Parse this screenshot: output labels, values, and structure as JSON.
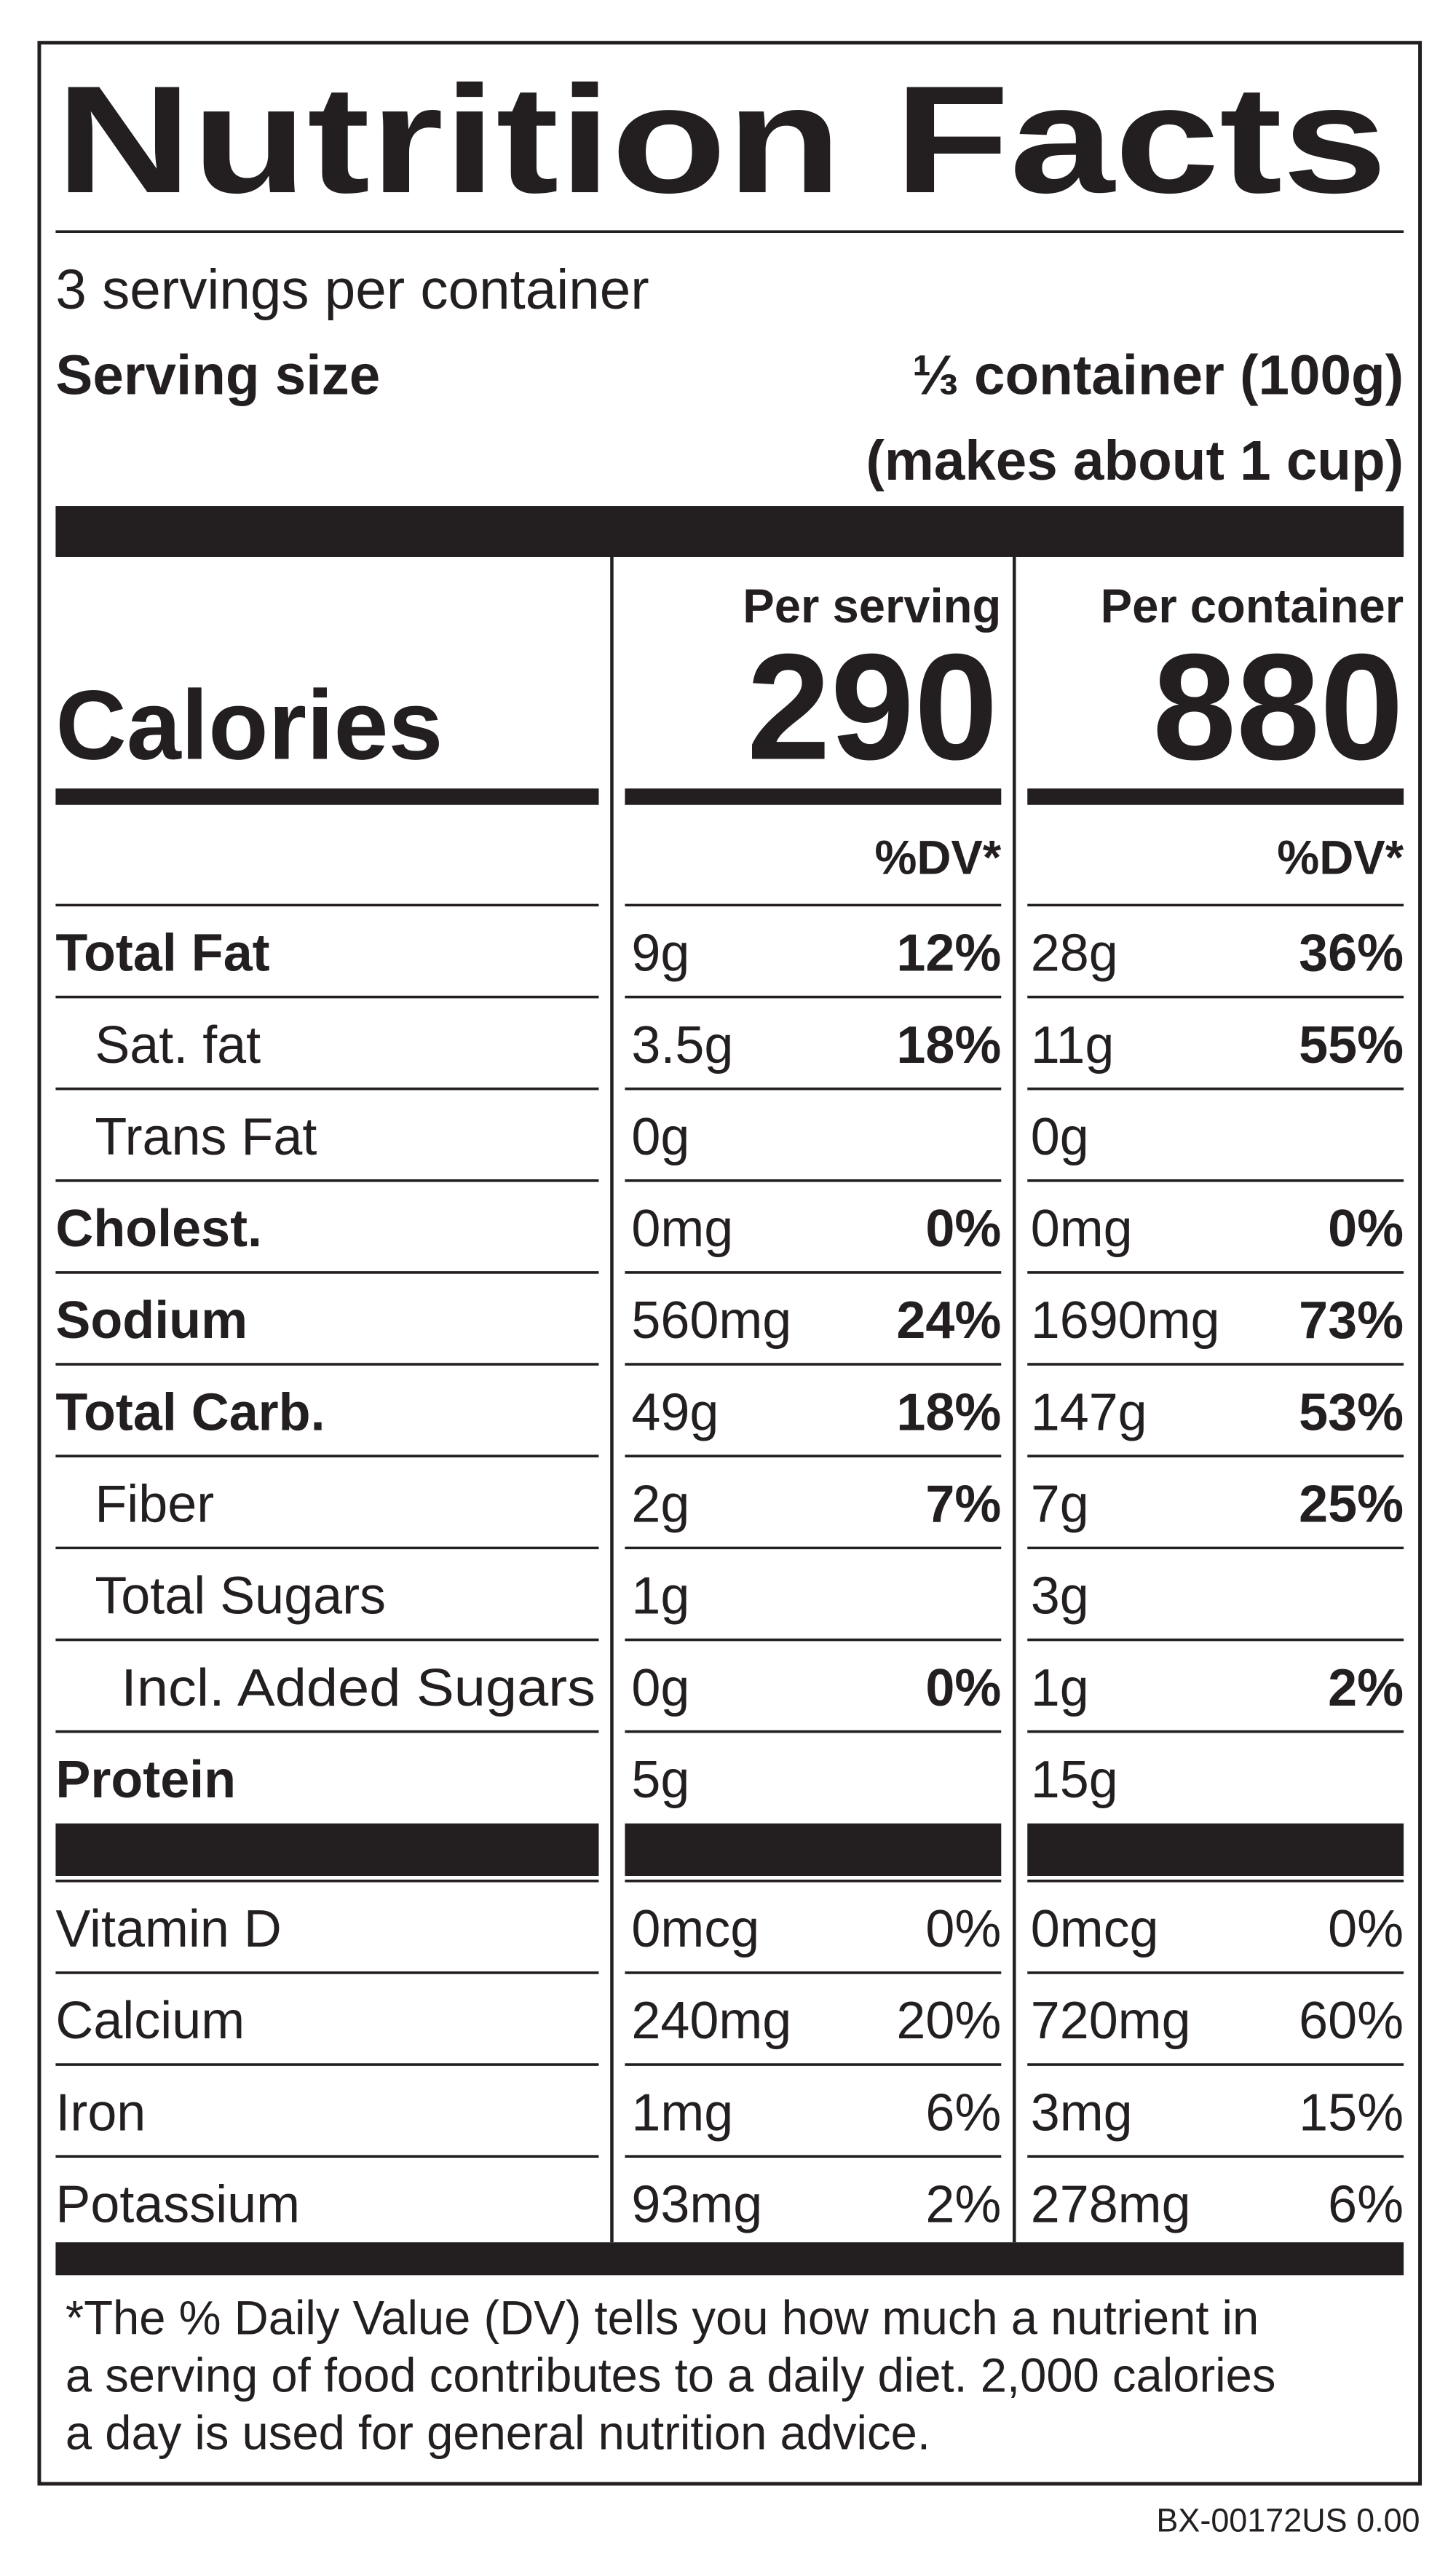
{
  "title": "Nutrition Facts",
  "servings": "3 servings per container",
  "serving_size": {
    "label": "Serving size",
    "value": "⅓ container (100g)",
    "note": "(makes about 1 cup)"
  },
  "calories": {
    "label": "Calories",
    "columns": [
      {
        "heading": "Per serving",
        "amount": "290",
        "dv_heading": "%DV*"
      },
      {
        "heading": "Per container",
        "amount": "880",
        "dv_heading": "%DV*"
      }
    ]
  },
  "nutrients": [
    {
      "name": "Total Fat",
      "per_serving": {
        "amount": "9g",
        "dv": "12%"
      },
      "per_container": {
        "amount": "28g",
        "dv": "36%"
      }
    },
    {
      "name": "Sat. fat",
      "per_serving": {
        "amount": "3.5g",
        "dv": "18%"
      },
      "per_container": {
        "amount": "11g",
        "dv": "55%"
      }
    },
    {
      "name": "Trans Fat",
      "per_serving": {
        "amount": "0g"
      },
      "per_container": {
        "amount": "0g"
      }
    },
    {
      "name": "Cholest.",
      "per_serving": {
        "amount": "0mg",
        "dv": "0%"
      },
      "per_container": {
        "amount": "0mg",
        "dv": "0%"
      }
    },
    {
      "name": "Sodium",
      "per_serving": {
        "amount": "560mg",
        "dv": "24%"
      },
      "per_container": {
        "amount": "1690mg",
        "dv": "73%"
      }
    },
    {
      "name": "Total Carb.",
      "per_serving": {
        "amount": "49g",
        "dv": "18%"
      },
      "per_container": {
        "amount": "147g",
        "dv": "53%"
      }
    },
    {
      "name": "Fiber",
      "per_serving": {
        "amount": "2g",
        "dv": "7%"
      },
      "per_container": {
        "amount": "7g",
        "dv": "25%"
      }
    },
    {
      "name": "Total Sugars",
      "per_serving": {
        "amount": "1g"
      },
      "per_container": {
        "amount": "3g"
      }
    },
    {
      "name": "Incl. Added Sugars",
      "per_serving": {
        "amount": "0g",
        "dv": "0%"
      },
      "per_container": {
        "amount": "1g",
        "dv": "2%"
      }
    },
    {
      "name": "Protein",
      "per_serving": {
        "amount": "5g"
      },
      "per_container": {
        "amount": "15g"
      }
    }
  ],
  "vitamins": [
    {
      "name": "Vitamin D",
      "per_serving": {
        "amount": "0mcg",
        "dv": "0%"
      },
      "per_container": {
        "amount": "0mcg",
        "dv": "0%"
      }
    },
    {
      "name": "Calcium",
      "per_serving": {
        "amount": "240mg",
        "dv": "20%"
      },
      "per_container": {
        "amount": "720mg",
        "dv": "60%"
      }
    },
    {
      "name": "Iron",
      "per_serving": {
        "amount": "1mg",
        "dv": "6%"
      },
      "per_container": {
        "amount": "3mg",
        "dv": "15%"
      }
    },
    {
      "name": "Potassium",
      "per_serving": {
        "amount": "93mg",
        "dv": "2%"
      },
      "per_container": {
        "amount": "278mg",
        "dv": "6%"
      }
    }
  ],
  "footnote": [
    "*The % Daily Value (DV) tells you how much a nutrient in",
    "a serving of food contributes to a daily diet. 2,000 calories",
    "a day is used for general nutrition advice."
  ],
  "code": "BX-00172US 0.00"
}
